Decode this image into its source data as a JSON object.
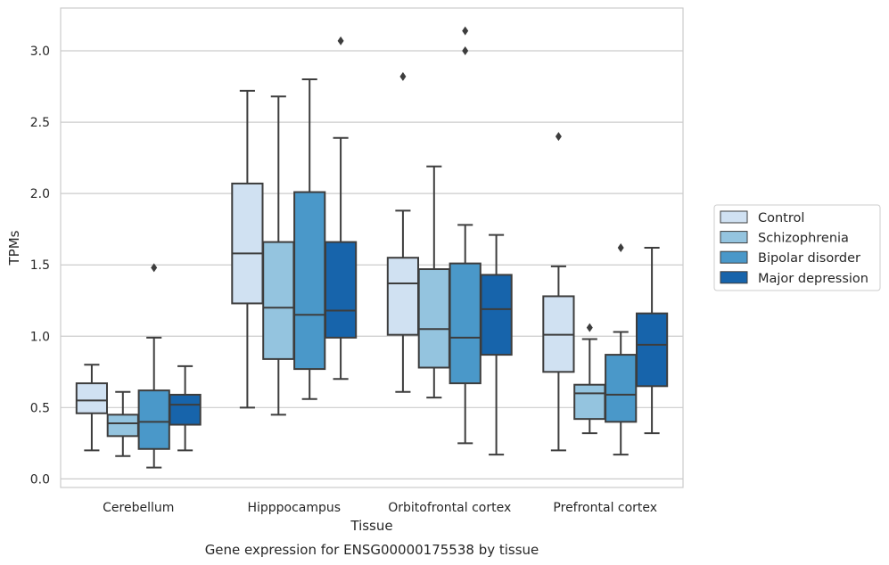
{
  "chart_data": {
    "type": "box",
    "title": "",
    "caption": "Gene expression for ENSG00000175538 by tissue",
    "xlabel": "Tissue",
    "ylabel": "TPMs",
    "ylim": [
      -0.06,
      3.3
    ],
    "yticks": [
      "0.0",
      "0.5",
      "1.0",
      "1.5",
      "2.0",
      "2.5",
      "3.0"
    ],
    "grid": "horizontal",
    "legend_position": "right",
    "categories": [
      "Cerebellum",
      "Hipppocampus",
      "Orbitofrontal cortex",
      "Prefrontal cortex"
    ],
    "series": [
      {
        "name": "Control",
        "color": "#d0e1f2",
        "boxes": [
          {
            "whisker_low": 0.2,
            "q1": 0.46,
            "median": 0.55,
            "q3": 0.67,
            "whisker_high": 0.8,
            "outliers": []
          },
          {
            "whisker_low": 0.5,
            "q1": 1.23,
            "median": 1.58,
            "q3": 2.07,
            "whisker_high": 2.72,
            "outliers": []
          },
          {
            "whisker_low": 0.61,
            "q1": 1.01,
            "median": 1.37,
            "q3": 1.55,
            "whisker_high": 1.88,
            "outliers": [
              2.82
            ]
          },
          {
            "whisker_low": 0.2,
            "q1": 0.75,
            "median": 1.01,
            "q3": 1.28,
            "whisker_high": 1.49,
            "outliers": [
              2.4
            ]
          }
        ]
      },
      {
        "name": "Schizophrenia",
        "color": "#94c4df",
        "boxes": [
          {
            "whisker_low": 0.16,
            "q1": 0.3,
            "median": 0.39,
            "q3": 0.45,
            "whisker_high": 0.61,
            "outliers": []
          },
          {
            "whisker_low": 0.45,
            "q1": 0.84,
            "median": 1.2,
            "q3": 1.66,
            "whisker_high": 2.68,
            "outliers": []
          },
          {
            "whisker_low": 0.57,
            "q1": 0.78,
            "median": 1.05,
            "q3": 1.47,
            "whisker_high": 2.19,
            "outliers": []
          },
          {
            "whisker_low": 0.32,
            "q1": 0.42,
            "median": 0.6,
            "q3": 0.66,
            "whisker_high": 0.98,
            "outliers": [
              1.06
            ]
          }
        ]
      },
      {
        "name": "Bipolar disorder",
        "color": "#4a98c9",
        "boxes": [
          {
            "whisker_low": 0.08,
            "q1": 0.21,
            "median": 0.4,
            "q3": 0.62,
            "whisker_high": 0.99,
            "outliers": [
              1.48
            ]
          },
          {
            "whisker_low": 0.56,
            "q1": 0.77,
            "median": 1.15,
            "q3": 2.01,
            "whisker_high": 2.8,
            "outliers": []
          },
          {
            "whisker_low": 0.25,
            "q1": 0.67,
            "median": 0.99,
            "q3": 1.51,
            "whisker_high": 1.78,
            "outliers": [
              3.0,
              3.14
            ]
          },
          {
            "whisker_low": 0.17,
            "q1": 0.4,
            "median": 0.59,
            "q3": 0.87,
            "whisker_high": 1.03,
            "outliers": [
              1.62
            ]
          }
        ]
      },
      {
        "name": "Major depression",
        "color": "#1764ab",
        "boxes": [
          {
            "whisker_low": 0.2,
            "q1": 0.38,
            "median": 0.52,
            "q3": 0.59,
            "whisker_high": 0.79,
            "outliers": []
          },
          {
            "whisker_low": 0.7,
            "q1": 0.99,
            "median": 1.18,
            "q3": 1.66,
            "whisker_high": 2.39,
            "outliers": [
              3.07
            ]
          },
          {
            "whisker_low": 0.17,
            "q1": 0.87,
            "median": 1.19,
            "q3": 1.43,
            "whisker_high": 1.71,
            "outliers": []
          },
          {
            "whisker_low": 0.32,
            "q1": 0.65,
            "median": 0.94,
            "q3": 1.16,
            "whisker_high": 1.62,
            "outliers": []
          }
        ]
      }
    ]
  }
}
